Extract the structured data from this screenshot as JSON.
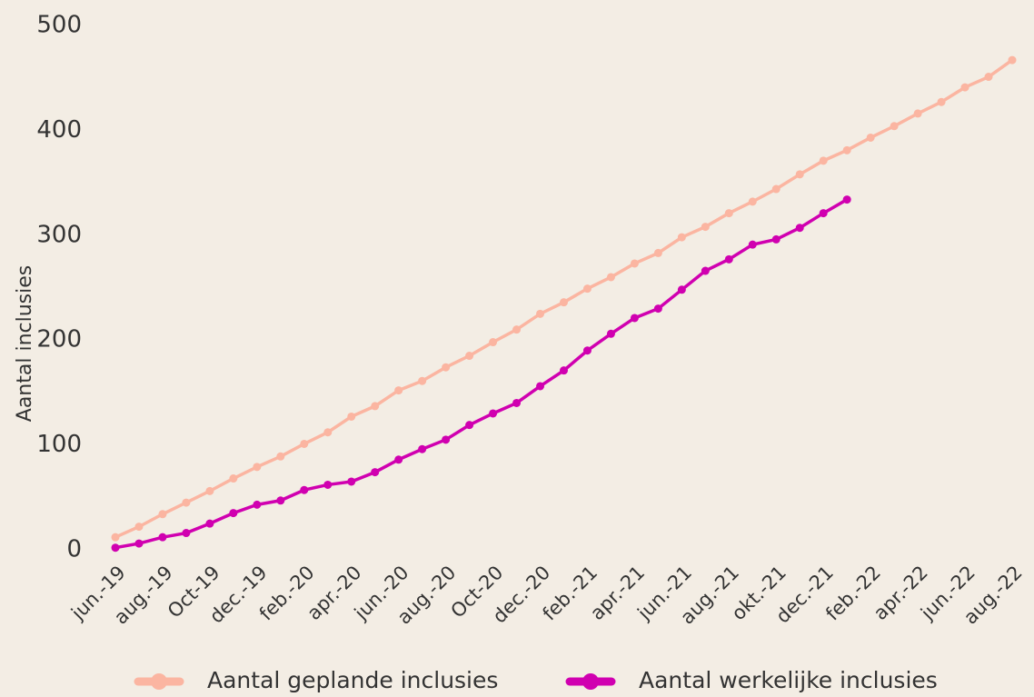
{
  "chart_data": {
    "type": "line",
    "y_label": "Aantal inclusies",
    "categories": [
      "jun.-19",
      null,
      "aug.-19",
      null,
      "Oct-19",
      null,
      "dec.-19",
      null,
      "feb.-20",
      null,
      "apr.-20",
      null,
      "jun.-20",
      null,
      "aug.-20",
      null,
      "Oct-20",
      null,
      "dec.-20",
      null,
      "feb.-21",
      null,
      "apr.-21",
      null,
      "jun.-21",
      null,
      "aug.-21",
      null,
      "okt.-21",
      null,
      "dec.-21",
      null,
      "feb.-22",
      null,
      "apr.-22",
      null,
      "jun.-22",
      null,
      "aug.-22"
    ],
    "series": [
      {
        "name": "Aantal geplande inclusies",
        "color": "#fbb5a1",
        "values": [
          12,
          22,
          34,
          45,
          56,
          68,
          79,
          89,
          101,
          112,
          127,
          137,
          152,
          161,
          174,
          185,
          198,
          210,
          225,
          236,
          249,
          260,
          273,
          283,
          298,
          308,
          321,
          332,
          344,
          358,
          371,
          381,
          393,
          404,
          416,
          427,
          441,
          451,
          467
        ]
      },
      {
        "name": "Aantal werkelijke inclusies",
        "color": "#d000b0",
        "values": [
          2,
          6,
          12,
          16,
          25,
          35,
          43,
          47,
          57,
          62,
          65,
          74,
          86,
          96,
          105,
          119,
          130,
          140,
          156,
          171,
          190,
          206,
          221,
          230,
          248,
          266,
          277,
          291,
          296,
          307,
          321,
          334,
          null,
          null,
          null,
          null,
          null,
          null,
          null
        ]
      }
    ],
    "ylim": [
      0,
      500
    ],
    "yticks": [
      0,
      100,
      200,
      300,
      400,
      500
    ],
    "grid": false,
    "legend": "bottom"
  }
}
